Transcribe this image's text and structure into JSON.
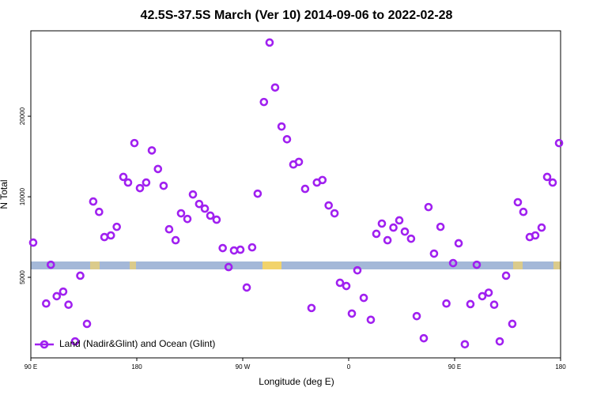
{
  "chart_data": {
    "type": "scatter",
    "title": "42.5S-37.5S March (Ver 10)   2014-09-06 to 2022-02-28",
    "x_label": "Longitude (deg E)",
    "y_label": "N Total",
    "xlim": [
      90,
      540
    ],
    "xticks": [
      {
        "value": 90,
        "label": "90 E"
      },
      180,
      {
        "value": 270,
        "label": "90 W"
      },
      {
        "value": 360,
        "label": "0"
      },
      {
        "value": 450,
        "label": "90 E"
      },
      {
        "value": 540,
        "label": "180"
      }
    ],
    "ylim": [
      2500,
      41700
    ],
    "yticks": [
      5000,
      10000,
      20000
    ],
    "log_y": true,
    "legend": "bottom-left",
    "x": [
      92,
      103,
      107,
      112,
      117.5,
      122,
      127.6,
      132,
      137.7,
      143,
      148,
      152.5,
      158,
      163,
      168.6,
      172.6,
      178,
      182.7,
      188,
      192.8,
      198,
      202.8,
      207.5,
      213,
      217.6,
      223,
      227.7,
      233,
      237.8,
      242.5,
      247.8,
      253,
      258,
      262.6,
      268,
      273.4,
      278,
      282.7,
      288,
      292.8,
      297.5,
      303,
      307.6,
      313,
      317.7,
      323,
      328.4,
      333,
      337.7,
      343,
      348,
      352.6,
      358,
      362.7,
      367.4,
      372.8,
      378.8,
      383.5,
      388.2,
      393,
      398,
      403,
      407.7,
      413,
      417.8,
      423.8,
      427.8,
      432.5,
      438,
      443,
      448.7,
      453.4,
      458.7,
      463.4,
      468.8,
      473.5,
      478.9,
      483.6,
      488.3,
      493.7,
      499,
      503.7,
      508.4,
      513.8,
      518.5,
      523.9,
      528.6,
      533.3,
      538.7
    ],
    "series": [
      {
        "name": "Land (Nadir&Glint) and Ocean (Glint)",
        "color": "#a020f0",
        "values": [
          6740,
          3990,
          5570,
          4250,
          4420,
          3950,
          2880,
          5070,
          3350,
          9600,
          8780,
          7070,
          7170,
          7720,
          11860,
          11300,
          15870,
          10770,
          11300,
          14900,
          12700,
          10990,
          7560,
          6880,
          8670,
          8260,
          10200,
          9400,
          9030,
          8500,
          8210,
          6430,
          5460,
          6300,
          6340,
          4580,
          6470,
          10270,
          22600,
          37700,
          25600,
          18300,
          16400,
          13200,
          13500,
          10700,
          3840,
          11300,
          11550,
          9280,
          8670,
          4770,
          4640,
          3660,
          5310,
          4190,
          3470,
          7270,
          7940,
          6880,
          7670,
          8160,
          7410,
          6970,
          3580,
          2960,
          9150,
          6130,
          7720,
          3990,
          5650,
          6700,
          2810,
          3970,
          5570,
          4250,
          4380,
          3950,
          2880,
          5070,
          3350,
          9540,
          8780,
          7070,
          7170,
          7670,
          11860,
          11300,
          15870
        ]
      }
    ]
  }
}
